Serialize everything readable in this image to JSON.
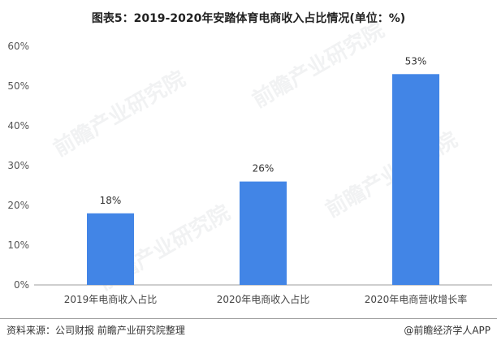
{
  "chart_data": {
    "type": "bar",
    "title": "图表5：2019-2020年安踏体育电商收入占比情况(单位：%)",
    "categories": [
      "2019年电商收入占比",
      "2020年电商收入占比",
      "2020年电商营收增长率"
    ],
    "values": [
      18,
      26,
      53
    ],
    "data_labels": [
      "18%",
      "26%",
      "53%"
    ],
    "ylim": [
      0,
      60
    ],
    "yticks": [
      0,
      10,
      20,
      30,
      40,
      50,
      60
    ],
    "ytick_labels": [
      "0%",
      "10%",
      "20%",
      "30%",
      "40%",
      "50%",
      "60%"
    ],
    "xlabel": "",
    "ylabel": "",
    "grid": false,
    "bar_color": "#4285e6"
  },
  "footer": {
    "source": "资料来源：公司财报 前瞻产业研究院整理",
    "brand": "@前瞻经济学人APP"
  },
  "watermark": "前瞻产业研究院"
}
